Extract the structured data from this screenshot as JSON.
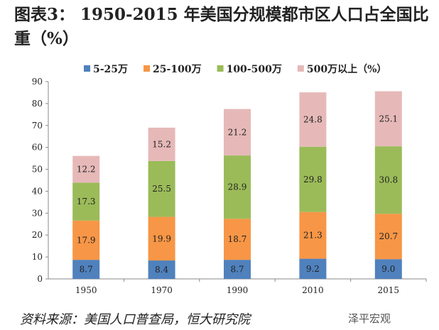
{
  "title": "图表3：  1950-2015 年美国分规模都市区人口占全国比重（%）",
  "source": "资料来源：美国人口普查局，恒大研究院",
  "watermark": "泽平宏观",
  "chart_data": {
    "type": "bar",
    "stacked": true,
    "categories": [
      "1950",
      "1970",
      "1990",
      "2010",
      "2015"
    ],
    "series": [
      {
        "name": "5-25万",
        "color": "#4f81bd",
        "values": [
          8.7,
          8.4,
          8.7,
          9.2,
          9.0
        ]
      },
      {
        "name": "25-100万",
        "color": "#f79646",
        "values": [
          17.9,
          19.9,
          18.7,
          21.3,
          20.7
        ]
      },
      {
        "name": "100-500万",
        "color": "#9bbb59",
        "values": [
          17.3,
          25.5,
          28.9,
          29.8,
          30.8
        ]
      },
      {
        "name": "500万以上（%）",
        "color": "#e6b9b8",
        "values": [
          12.2,
          15.2,
          21.2,
          24.8,
          25.1
        ]
      }
    ],
    "ylim": [
      0,
      90
    ],
    "yticks": [
      0,
      10,
      20,
      30,
      40,
      50,
      60,
      70,
      80,
      90
    ],
    "legend": "top",
    "grid": false
  }
}
